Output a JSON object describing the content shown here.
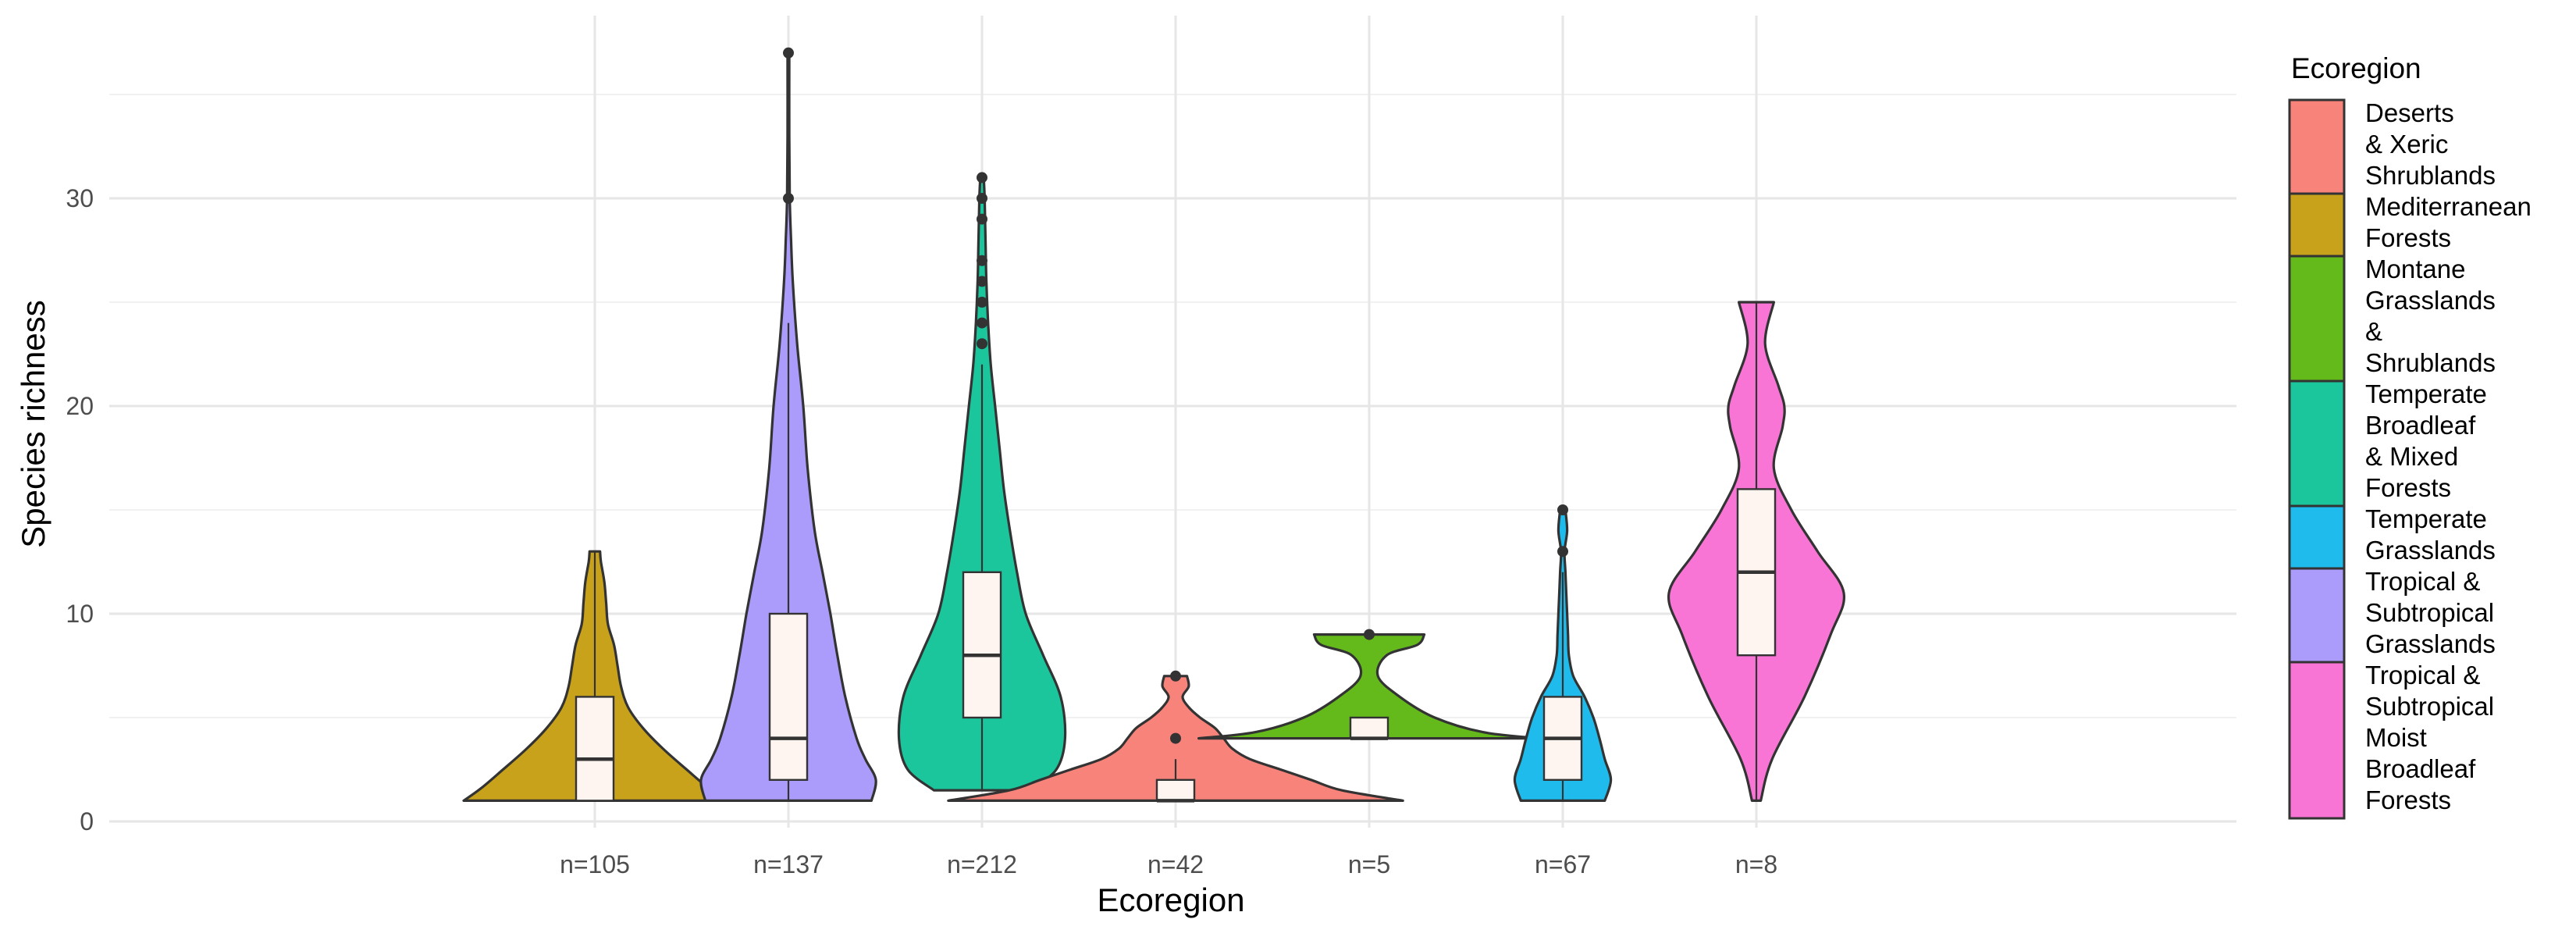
{
  "chart_data": {
    "type": "violin",
    "xlabel": "Ecoregion",
    "ylabel": "Species richness",
    "ylim": [
      0,
      38
    ],
    "y_ticks": [
      0,
      10,
      20,
      30
    ],
    "grid": true,
    "legend": {
      "title": "Ecoregion",
      "placement": "right"
    },
    "categories": [
      "n=105",
      "n=137",
      "n=212",
      "n=42",
      "n=5",
      "n=67",
      "n=8"
    ],
    "series": [
      {
        "name": "Mediterranean Forests",
        "legend_lines": [
          "Mediterranean",
          "Forests"
        ],
        "color": "#c9a21b",
        "category": "n=105",
        "density": [
          [
            1,
            1.5
          ],
          [
            1.6,
            1.3
          ],
          [
            2.5,
            1.05
          ],
          [
            3.5,
            0.78
          ],
          [
            4.5,
            0.55
          ],
          [
            5.5,
            0.38
          ],
          [
            6.5,
            0.3
          ],
          [
            7.5,
            0.26
          ],
          [
            8.5,
            0.22
          ],
          [
            9.5,
            0.15
          ],
          [
            10.5,
            0.13
          ],
          [
            11.5,
            0.11
          ],
          [
            12.5,
            0.07
          ],
          [
            13,
            0.06
          ]
        ],
        "box": {
          "q1": 1,
          "median": 3,
          "q3": 6,
          "lower_whisker": 1,
          "upper_whisker": 13
        },
        "outliers": []
      },
      {
        "name": "Tropical & Subtropical Grasslands",
        "legend_lines": [
          "Tropical &",
          "Subtropical",
          "Grasslands"
        ],
        "color": "#ab9cfb",
        "category": "n=137",
        "density": [
          [
            1,
            0.95
          ],
          [
            2,
            1.0
          ],
          [
            3,
            0.88
          ],
          [
            4,
            0.78
          ],
          [
            6,
            0.65
          ],
          [
            8,
            0.56
          ],
          [
            10,
            0.48
          ],
          [
            12,
            0.39
          ],
          [
            14,
            0.3
          ],
          [
            17,
            0.22
          ],
          [
            20,
            0.17
          ],
          [
            23,
            0.1
          ],
          [
            26,
            0.05
          ],
          [
            28,
            0.03
          ],
          [
            30,
            0.015
          ],
          [
            33,
            0.01
          ],
          [
            37,
            0.01
          ]
        ],
        "box": {
          "q1": 2,
          "median": 4,
          "q3": 10,
          "lower_whisker": 1,
          "upper_whisker": 24
        },
        "outliers": [
          30,
          37
        ]
      },
      {
        "name": "Temperate Broadleaf & Mixed Forests",
        "legend_lines": [
          "Temperate",
          "Broadleaf",
          "& Mixed",
          "Forests"
        ],
        "color": "#1bc69d",
        "category": "n=212",
        "density": [
          [
            1.5,
            0.55
          ],
          [
            2.5,
            0.85
          ],
          [
            4,
            0.95
          ],
          [
            6,
            0.9
          ],
          [
            8,
            0.7
          ],
          [
            10,
            0.5
          ],
          [
            12,
            0.4
          ],
          [
            14,
            0.32
          ],
          [
            16,
            0.25
          ],
          [
            18,
            0.2
          ],
          [
            20,
            0.15
          ],
          [
            22,
            0.1
          ],
          [
            24,
            0.07
          ],
          [
            26,
            0.05
          ],
          [
            28,
            0.04
          ],
          [
            30,
            0.03
          ],
          [
            31,
            0.02
          ]
        ],
        "box": {
          "q1": 5,
          "median": 8,
          "q3": 12,
          "lower_whisker": 1.5,
          "upper_whisker": 22
        },
        "outliers": [
          23,
          24,
          25,
          26,
          27,
          29,
          30,
          31
        ]
      },
      {
        "name": "Deserts & Xeric Shrublands",
        "legend_lines": [
          "Deserts",
          "& Xeric",
          "Shrublands"
        ],
        "color": "#f8837a",
        "category": "n=42",
        "density": [
          [
            1,
            2.6
          ],
          [
            1.5,
            1.9
          ],
          [
            2,
            1.55
          ],
          [
            2.5,
            1.2
          ],
          [
            3,
            0.85
          ],
          [
            3.5,
            0.65
          ],
          [
            4,
            0.55
          ],
          [
            4.5,
            0.45
          ],
          [
            5,
            0.28
          ],
          [
            5.5,
            0.15
          ],
          [
            6,
            0.08
          ],
          [
            6.5,
            0.15
          ],
          [
            7,
            0.13
          ]
        ],
        "box": {
          "q1": 1,
          "median": 1,
          "q3": 2,
          "lower_whisker": 1,
          "upper_whisker": 3
        },
        "outliers": [
          4,
          7
        ]
      },
      {
        "name": "Montane Grasslands & Shrublands",
        "legend_lines": [
          "Montane",
          "Grasslands",
          "&",
          "Shrublands"
        ],
        "color": "#64b91b",
        "category": "n=5",
        "density": [
          [
            4,
            1.95
          ],
          [
            4.3,
            1.3
          ],
          [
            5,
            0.75
          ],
          [
            6,
            0.35
          ],
          [
            7,
            0.1
          ],
          [
            8,
            0.2
          ],
          [
            8.5,
            0.55
          ],
          [
            9,
            0.63
          ]
        ],
        "box": {
          "q1": 4,
          "median": 4,
          "q3": 5,
          "lower_whisker": 4,
          "upper_whisker": 5
        },
        "outliers": [
          9
        ]
      },
      {
        "name": "Temperate Grasslands",
        "legend_lines": [
          "Temperate",
          "Grasslands"
        ],
        "color": "#1ebbec",
        "category": "n=67",
        "density": [
          [
            1,
            0.48
          ],
          [
            2,
            0.55
          ],
          [
            3,
            0.48
          ],
          [
            4,
            0.42
          ],
          [
            5,
            0.35
          ],
          [
            6,
            0.25
          ],
          [
            7,
            0.12
          ],
          [
            8,
            0.07
          ],
          [
            9,
            0.06
          ],
          [
            10,
            0.05
          ],
          [
            12,
            0.03
          ],
          [
            13,
            0.02
          ],
          [
            14,
            0.05
          ],
          [
            15,
            0.03
          ]
        ],
        "box": {
          "q1": 2,
          "median": 4,
          "q3": 6,
          "lower_whisker": 1,
          "upper_whisker": 12
        },
        "outliers": [
          13,
          15
        ]
      },
      {
        "name": "Tropical & Subtropical Moist Broadleaf Forests",
        "legend_lines": [
          "Tropical &",
          "Subtropical",
          "Moist",
          "Broadleaf",
          "Forests"
        ],
        "color": "#f875d6",
        "category": "n=8",
        "density": [
          [
            1,
            0.05
          ],
          [
            3,
            0.18
          ],
          [
            6,
            0.55
          ],
          [
            9,
            0.85
          ],
          [
            11,
            1.0
          ],
          [
            13,
            0.7
          ],
          [
            15,
            0.4
          ],
          [
            17,
            0.2
          ],
          [
            19,
            0.3
          ],
          [
            20,
            0.32
          ],
          [
            21,
            0.25
          ],
          [
            23,
            0.1
          ],
          [
            25,
            0.2
          ]
        ],
        "box": {
          "q1": 8,
          "median": 12,
          "q3": 16,
          "lower_whisker": 1,
          "upper_whisker": 25
        },
        "outliers": []
      }
    ]
  }
}
